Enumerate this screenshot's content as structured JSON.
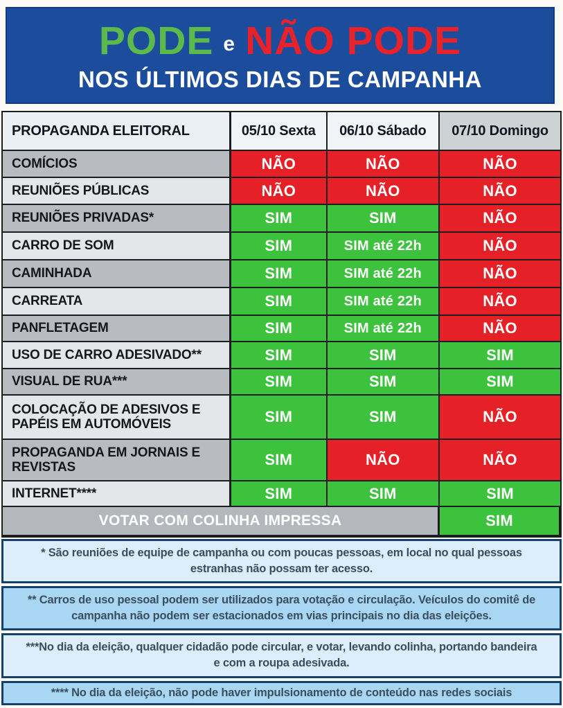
{
  "banner": {
    "title_green": "PODE",
    "title_connector": "e",
    "title_red": "NÃO PODE",
    "subtitle": "NOS ÚLTIMOS DIAS DE CAMPANHA"
  },
  "table": {
    "header": {
      "col0": "PROPAGANDA ELEITORAL",
      "col1": "05/10 Sexta",
      "col2": "06/10 Sábado",
      "col3": "07/10 Domingo"
    },
    "rows": [
      {
        "label": "COMÍCIOS",
        "c1": "NÃO",
        "c2": "NÃO",
        "c3": "NÃO"
      },
      {
        "label": "REUNIÕES PÚBLICAS",
        "c1": "NÃO",
        "c2": "NÃO",
        "c3": "NÃO"
      },
      {
        "label": "REUNIÕES PRIVADAS*",
        "c1": "SIM",
        "c2": "SIM",
        "c3": "NÃO"
      },
      {
        "label": "CARRO DE SOM",
        "c1": "SIM",
        "c2": "SIM até 22h",
        "c3": "NÃO"
      },
      {
        "label": "CAMINHADA",
        "c1": "SIM",
        "c2": "SIM até 22h",
        "c3": "NÃO"
      },
      {
        "label": "CARREATA",
        "c1": "SIM",
        "c2": "SIM até 22h",
        "c3": "NÃO"
      },
      {
        "label": "PANFLETAGEM",
        "c1": "SIM",
        "c2": "SIM até 22h",
        "c3": "NÃO"
      },
      {
        "label": "USO DE CARRO ADESIVADO**",
        "c1": "SIM",
        "c2": "SIM",
        "c3": "SIM"
      },
      {
        "label": "VISUAL DE RUA***",
        "c1": "SIM",
        "c2": "SIM",
        "c3": "SIM"
      },
      {
        "label": "COLOCAÇÃO DE ADESIVOS E PAPÉIS EM AUTOMÓVEIS",
        "c1": "SIM",
        "c2": "SIM",
        "c3": "NÃO"
      },
      {
        "label": "PROPAGANDA EM JORNAIS E REVISTAS",
        "c1": "SIM",
        "c2": "NÃO",
        "c3": "NÃO"
      },
      {
        "label": "INTERNET****",
        "c1": "SIM",
        "c2": "SIM",
        "c3": "SIM"
      }
    ],
    "footer_row": {
      "label": "VOTAR COM COLINHA IMPRESSA",
      "c3": "SIM"
    }
  },
  "notes": [
    "* São reuniões de equipe de campanha ou com poucas pessoas, em local no qual pessoas estranhas não possam ter acesso.",
    "** Carros de uso pessoal podem ser utilizados para votação e circulação. Veículos do comitê de campanha não podem ser estacionados em vias principais no dia das eleições.",
    "***No dia da eleição, qualquer cidadão pode circular, e votar, levando colinha, portando bandeira e com a roupa adesivada.",
    "**** No dia da eleição, não pode haver impulsionamento de conteúdo nas redes sociais"
  ],
  "colors": {
    "banner_blue": "#1c4c9c",
    "title_green": "#5cba4c",
    "title_red": "#e8222b",
    "cell_green": "#3dc23d",
    "cell_red": "#e52127",
    "row_gray_dark": "#b8bcc0",
    "row_gray_light": "#e3e7ea",
    "note_bg_light": "#ddeefa",
    "note_bg_blue": "#a9d6f3",
    "note_border": "#15406b"
  },
  "chart_data": {
    "type": "table",
    "title": "PODE e NÃO PODE NOS ÚLTIMOS DIAS DE CAMPANHA",
    "columns": [
      "PROPAGANDA ELEITORAL",
      "05/10 Sexta",
      "06/10 Sábado",
      "07/10 Domingo"
    ],
    "rows": [
      [
        "COMÍCIOS",
        "NÃO",
        "NÃO",
        "NÃO"
      ],
      [
        "REUNIÕES PÚBLICAS",
        "NÃO",
        "NÃO",
        "NÃO"
      ],
      [
        "REUNIÕES PRIVADAS*",
        "SIM",
        "SIM",
        "NÃO"
      ],
      [
        "CARRO DE SOM",
        "SIM",
        "SIM até 22h",
        "NÃO"
      ],
      [
        "CAMINHADA",
        "SIM",
        "SIM até 22h",
        "NÃO"
      ],
      [
        "CARREATA",
        "SIM",
        "SIM até 22h",
        "NÃO"
      ],
      [
        "PANFLETAGEM",
        "SIM",
        "SIM até 22h",
        "NÃO"
      ],
      [
        "USO DE CARRO ADESIVADO**",
        "SIM",
        "SIM",
        "SIM"
      ],
      [
        "VISUAL DE RUA***",
        "SIM",
        "SIM",
        "SIM"
      ],
      [
        "COLOCAÇÃO DE ADESIVOS E PAPÉIS EM AUTOMÓVEIS",
        "SIM",
        "SIM",
        "NÃO"
      ],
      [
        "PROPAGANDA EM JORNAIS E REVISTAS",
        "SIM",
        "NÃO",
        "NÃO"
      ],
      [
        "INTERNET****",
        "SIM",
        "SIM",
        "SIM"
      ],
      [
        "VOTAR COM COLINHA IMPRESSA",
        "",
        "",
        "SIM"
      ]
    ],
    "legend": {
      "SIM": "green = allowed",
      "NÃO": "red = not allowed"
    }
  }
}
